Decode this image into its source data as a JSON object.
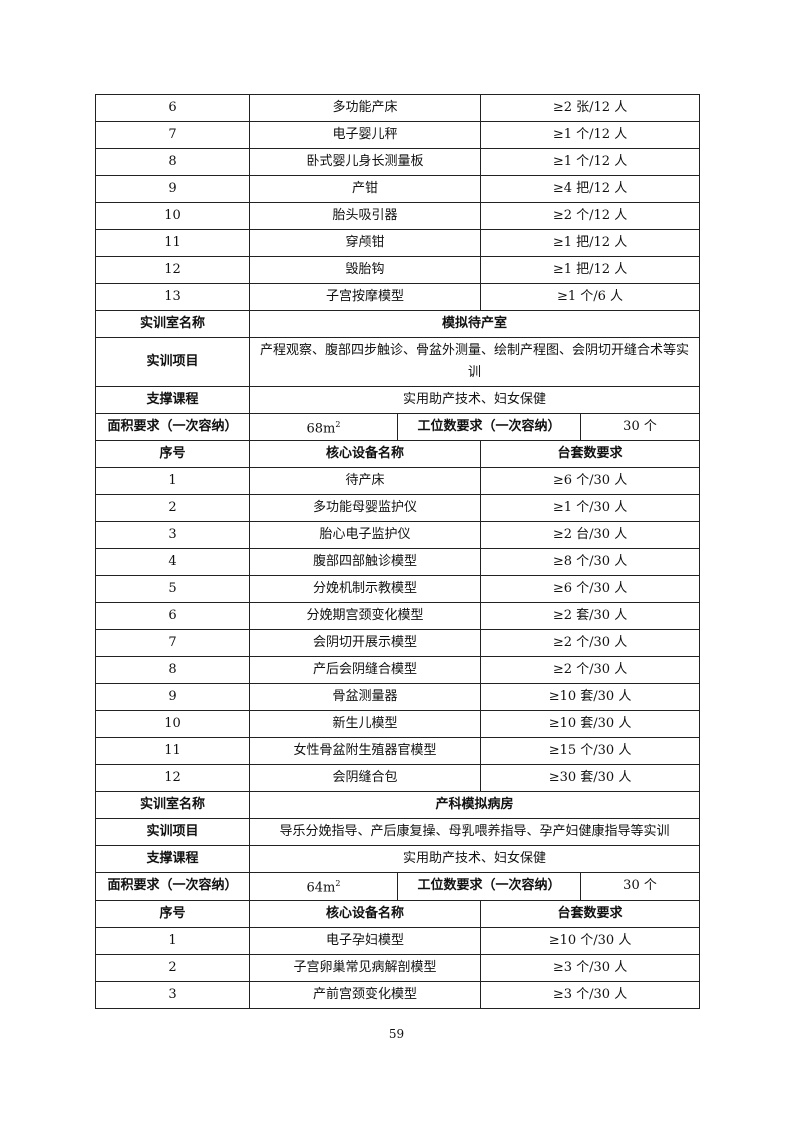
{
  "section1_rows": [
    {
      "no": "6",
      "name": "多功能产床",
      "qty": "≥2 张/12 人"
    },
    {
      "no": "7",
      "name": "电子婴儿秤",
      "qty": "≥1 个/12 人"
    },
    {
      "no": "8",
      "name": "卧式婴儿身长测量板",
      "qty": "≥1 个/12 人"
    },
    {
      "no": "9",
      "name": "产钳",
      "qty": "≥4 把/12 人"
    },
    {
      "no": "10",
      "name": "胎头吸引器",
      "qty": "≥2 个/12 人"
    },
    {
      "no": "11",
      "name": "穿颅钳",
      "qty": "≥1 把/12 人"
    },
    {
      "no": "12",
      "name": "毁胎钩",
      "qty": "≥1 把/12 人"
    },
    {
      "no": "13",
      "name": "子宫按摩模型",
      "qty": "≥1 个/6 人"
    }
  ],
  "labels": {
    "room_name": "实训室名称",
    "project": "实训项目",
    "course": "支撑课程",
    "area": "面积要求（一次容纳）",
    "stations": "工位数要求（一次容纳）",
    "no": "序号",
    "equipment": "核心设备名称",
    "qty": "台套数要求"
  },
  "room2": {
    "name": "模拟待产室",
    "project": "产程观察、腹部四步触诊、骨盆外测量、绘制产程图、会阴切开缝合术等实训",
    "course": "实用助产技术、妇女保健",
    "area": "68m",
    "area_unit_sup": "2",
    "stations": "30 个",
    "rows": [
      {
        "no": "1",
        "name": "待产床",
        "qty": "≥6 个/30 人"
      },
      {
        "no": "2",
        "name": "多功能母婴监护仪",
        "qty": "≥1 个/30 人"
      },
      {
        "no": "3",
        "name": "胎心电子监护仪",
        "qty": "≥2 台/30 人"
      },
      {
        "no": "4",
        "name": "腹部四部触诊模型",
        "qty": "≥8 个/30 人"
      },
      {
        "no": "5",
        "name": "分娩机制示教模型",
        "qty": "≥6 个/30 人"
      },
      {
        "no": "6",
        "name": "分娩期宫颈变化模型",
        "qty": "≥2 套/30 人"
      },
      {
        "no": "7",
        "name": "会阴切开展示模型",
        "qty": "≥2 个/30 人"
      },
      {
        "no": "8",
        "name": "产后会阴缝合模型",
        "qty": "≥2 个/30 人"
      },
      {
        "no": "9",
        "name": "骨盆测量器",
        "qty": "≥10 套/30 人"
      },
      {
        "no": "10",
        "name": "新生儿模型",
        "qty": "≥10 套/30 人"
      },
      {
        "no": "11",
        "name": "女性骨盆附生殖器官模型",
        "qty": "≥15 个/30 人"
      },
      {
        "no": "12",
        "name": "会阴缝合包",
        "qty": "≥30 套/30 人"
      }
    ]
  },
  "room3": {
    "name": "产科模拟病房",
    "project": "导乐分娩指导、产后康复操、母乳喂养指导、孕产妇健康指导等实训",
    "course": "实用助产技术、妇女保健",
    "area": "64m",
    "area_unit_sup": "2",
    "stations": "30 个",
    "rows": [
      {
        "no": "1",
        "name": "电子孕妇模型",
        "qty": "≥10 个/30 人"
      },
      {
        "no": "2",
        "name": "子宫卵巢常见病解剖模型",
        "qty": "≥3 个/30 人"
      },
      {
        "no": "3",
        "name": "产前宫颈变化模型",
        "qty": "≥3 个/30 人"
      }
    ]
  },
  "page_number": "59"
}
